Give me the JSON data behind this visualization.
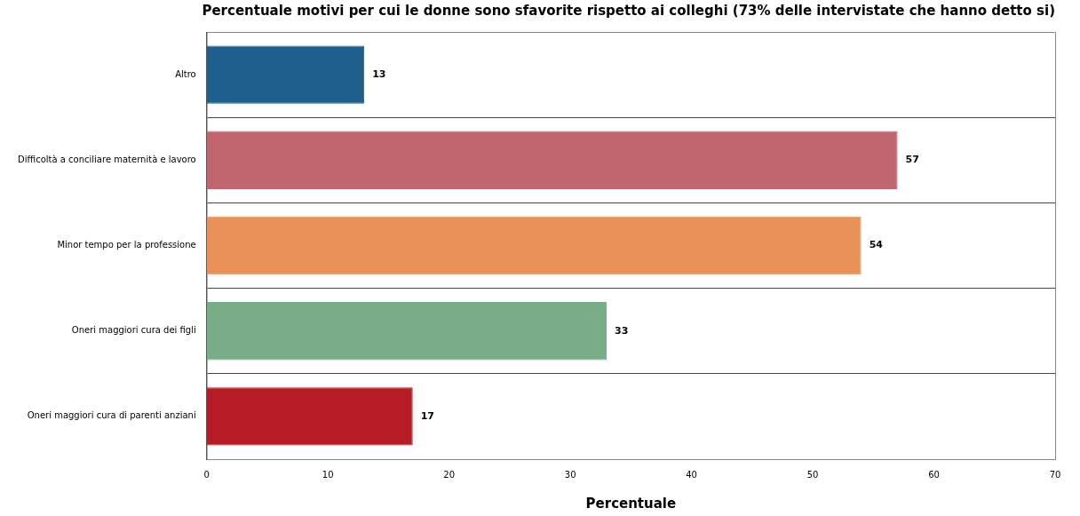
{
  "chart_data": {
    "type": "bar",
    "orientation": "horizontal",
    "title": "Percentuale motivi per cui le donne sono sfavorite rispetto ai colleghi (73% delle intervistate che hanno detto si)",
    "xlabel": "Percentuale",
    "categories": [
      "Altro",
      "Difficoltà a conciliare maternità e lavoro",
      "Minor tempo per la professione",
      "Oneri maggiori cura dei figli",
      "Oneri maggiori cura di parenti anziani"
    ],
    "values": [
      13,
      57,
      54,
      33,
      17
    ],
    "colors": [
      "#1f5f8b",
      "#c0646e",
      "#e8925a",
      "#78ad88",
      "#b51c26"
    ],
    "xlim": [
      0,
      70
    ],
    "xticks": [
      0,
      10,
      20,
      30,
      40,
      50,
      60,
      70
    ],
    "grid": "y",
    "data_labels": true
  }
}
